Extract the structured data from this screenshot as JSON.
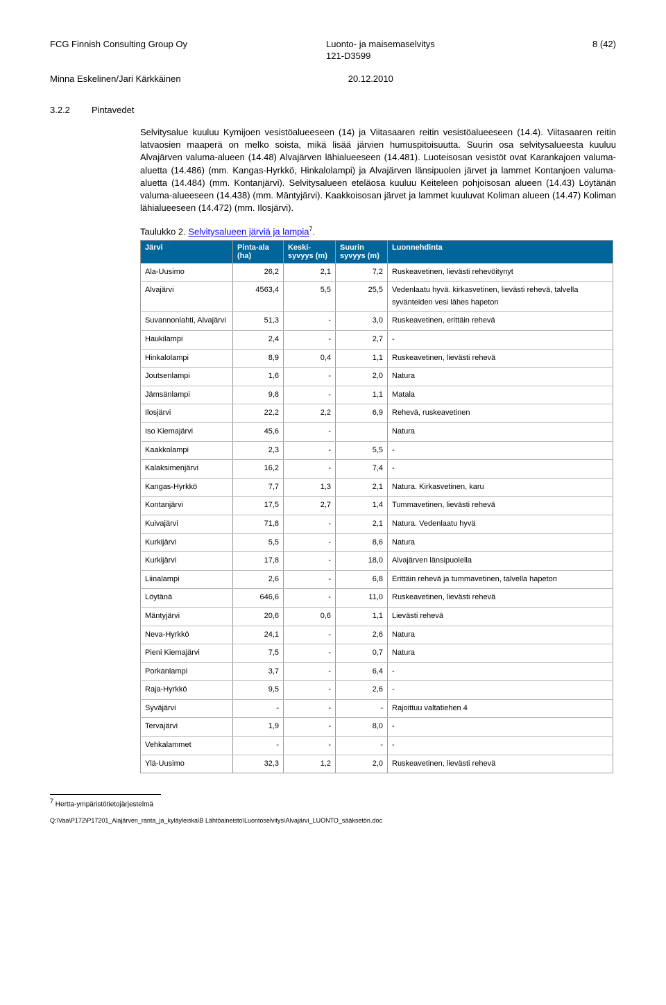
{
  "header": {
    "company": "FCG Finnish Consulting Group Oy",
    "doc_title": "Luonto- ja maisemaselvitys",
    "doc_code": "121-D3599",
    "page_label": "8 (42)",
    "author": "Minna Eskelinen/Jari Kärkkäinen",
    "date": "20.12.2010"
  },
  "section": {
    "number": "3.2.2",
    "title": "Pintavedet",
    "para1": "Selvitysalue kuuluu Kymijoen vesistöalueeseen (14) ja Viitasaaren reitin vesistöalueeseen (14.4). Viitasaaren reitin latvaosien maaperä on melko soista, mikä lisää järvien humuspitoisuutta. Suurin osa selvitysalueesta kuuluu Alvajärven valuma-alueen (14.48) Alvajärven lähialueeseen (14.481). Luoteisosan vesistöt ovat Karankajoen valuma-aluetta (14.486) (mm. Kangas-Hyrkkö, Hinkalolampi) ja Alvajärven länsipuolen järvet ja lammet Kontanjoen valuma-aluetta (14.484) (mm. Kontanjärvi). Selvitysalueen eteläosa kuuluu Keiteleen pohjoisosan alueen (14.43) Löytänän valuma-alueeseen (14.438) (mm. Mäntyjärvi). Kaakkoisosan järvet ja lammet kuuluvat Koliman alueen (14.47) Koliman lähialueeseen (14.472) (mm. Ilosjärvi)."
  },
  "table": {
    "caption_prefix": "Taulukko 2. ",
    "caption_link": "Selvitysalueen järviä ja lampia",
    "caption_sup": "7",
    "caption_suffix": ".",
    "headers": {
      "name": "Järvi",
      "area": "Pinta-ala (ha)",
      "avg": "Keski-syvyys (m)",
      "max": "Suurin syvyys (m)",
      "desc": "Luonnehdinta"
    },
    "rows": [
      {
        "name": "Ala-Uusimo",
        "area": "26,2",
        "avg": "2,1",
        "max": "7,2",
        "desc": "Ruskeavetinen, lievästi rehevöitynyt"
      },
      {
        "name": "Alvajärvi",
        "area": "4563,4",
        "avg": "5,5",
        "max": "25,5",
        "desc": "Vedenlaatu hyvä. kirkasvetinen, lievästi rehevä, talvella syvänteiden vesi lähes hapeton"
      },
      {
        "name": "Suvannonlahti, Alvajärvi",
        "area": "51,3",
        "avg": "-",
        "max": "3,0",
        "desc": "Ruskeavetinen, erittäin rehevä"
      },
      {
        "name": "Haukilampi",
        "area": "2,4",
        "avg": "-",
        "max": "2,7",
        "desc": "-"
      },
      {
        "name": "Hinkalolampi",
        "area": "8,9",
        "avg": "0,4",
        "max": "1,1",
        "desc": "Ruskeavetinen, lievästi rehevä"
      },
      {
        "name": "Joutsenlampi",
        "area": "1,6",
        "avg": "-",
        "max": "2,0",
        "desc": "Natura"
      },
      {
        "name": "Jämsänlampi",
        "area": "9,8",
        "avg": "-",
        "max": "1,1",
        "desc": "Matala"
      },
      {
        "name": "Ilosjärvi",
        "area": "22,2",
        "avg": "2,2",
        "max": "6,9",
        "desc": "Rehevä, ruskeavetinen"
      },
      {
        "name": "Iso Kiemajärvi",
        "area": "45,6",
        "avg": "-",
        "max": "",
        "desc": "Natura"
      },
      {
        "name": "Kaakkolampi",
        "area": "2,3",
        "avg": "-",
        "max": "5,5",
        "desc": "-"
      },
      {
        "name": "Kalaksimenjärvi",
        "area": "16,2",
        "avg": "-",
        "max": "7,4",
        "desc": "-"
      },
      {
        "name": "Kangas-Hyrkkö",
        "area": "7,7",
        "avg": "1,3",
        "max": "2,1",
        "desc": "Natura. Kirkasvetinen, karu"
      },
      {
        "name": "Kontanjärvi",
        "area": "17,5",
        "avg": "2,7",
        "max": "1,4",
        "desc": "Tummavetinen, lievästi rehevä"
      },
      {
        "name": "Kuivajärvi",
        "area": "71,8",
        "avg": "-",
        "max": "2,1",
        "desc": "Natura. Vedenlaatu hyvä"
      },
      {
        "name": "Kurkijärvi",
        "area": "5,5",
        "avg": "-",
        "max": "8,6",
        "desc": "Natura"
      },
      {
        "name": "Kurkijärvi",
        "area": "17,8",
        "avg": "-",
        "max": "18,0",
        "desc": "Alvajärven länsipuolella"
      },
      {
        "name": "Liinalampi",
        "area": "2,6",
        "avg": "-",
        "max": "6,8",
        "desc": "Erittäin rehevä ja tummavetinen, talvella hapeton"
      },
      {
        "name": "Löytänä",
        "area": "646,6",
        "avg": "-",
        "max": "11,0",
        "desc": "Ruskeavetinen, lievästi rehevä"
      },
      {
        "name": "Mäntyjärvi",
        "area": "20,6",
        "avg": "0,6",
        "max": "1,1",
        "desc": "Lievästi rehevä"
      },
      {
        "name": "Neva-Hyrkkö",
        "area": "24,1",
        "avg": "-",
        "max": "2,6",
        "desc": "Natura"
      },
      {
        "name": "Pieni Kiemajärvi",
        "area": "7,5",
        "avg": "-",
        "max": "0,7",
        "desc": "Natura"
      },
      {
        "name": "Porkanlampi",
        "area": "3,7",
        "avg": "-",
        "max": "6,4",
        "desc": "-"
      },
      {
        "name": "Raja-Hyrkkö",
        "area": "9,5",
        "avg": "-",
        "max": "2,6",
        "desc": "-"
      },
      {
        "name": "Syväjärvi",
        "area": "-",
        "avg": "-",
        "max": "-",
        "desc": "Rajoittuu valtatiehen 4"
      },
      {
        "name": "Tervajärvi",
        "area": "1,9",
        "avg": "-",
        "max": "8,0",
        "desc": "-"
      },
      {
        "name": "Vehkalammet",
        "area": "-",
        "avg": "-",
        "max": "-",
        "desc": "-"
      },
      {
        "name": "Ylä-Uusimo",
        "area": "32,3",
        "avg": "1,2",
        "max": "2,0",
        "desc": "Ruskeavetinen, lievästi rehevä"
      }
    ]
  },
  "footnote": {
    "num": "7",
    "text": "Hertta-ympäristötietojärjestelmä"
  },
  "footer_path": "Q:\\Vaa\\P172\\P17201_Alajärven_ranta_ja_kyläyleiska\\B Lähtöaineisto\\Luontoselvitys\\Alvajärvi_LUONTO_sääksetön.doc"
}
